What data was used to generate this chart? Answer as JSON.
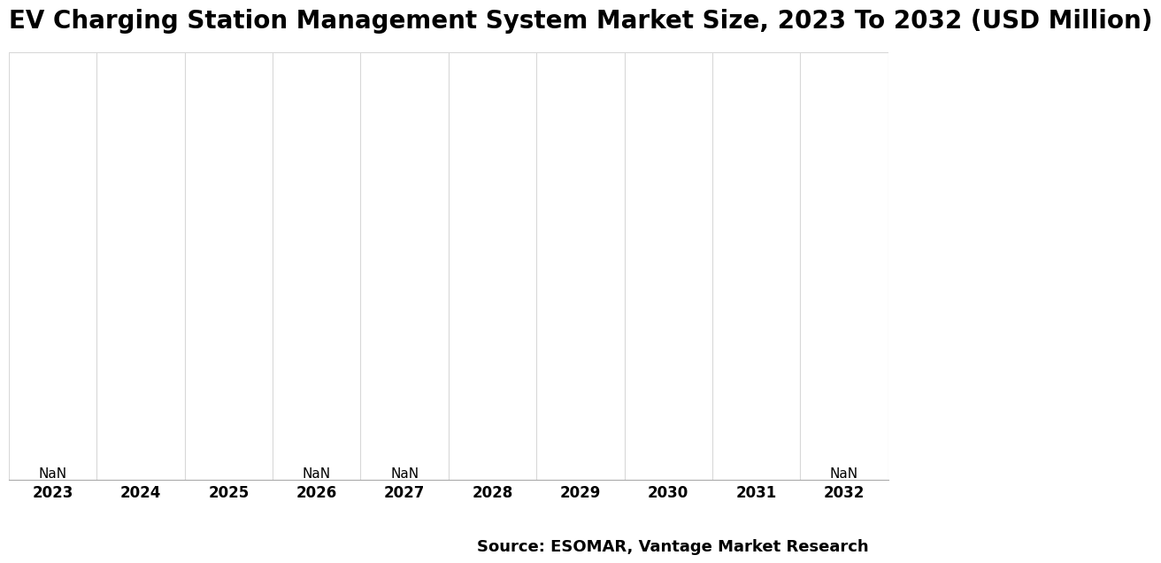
{
  "title": "EV Charging Station Management System Market Size, 2023 To 2032 (USD Million)",
  "years": [
    2023,
    2024,
    2025,
    2026,
    2027,
    2028,
    2029,
    2030,
    2031,
    2032
  ],
  "values": [
    0,
    0,
    0,
    0,
    0,
    0,
    0,
    0,
    0,
    0
  ],
  "nan_label_indices": [
    0,
    3,
    4,
    9
  ],
  "bar_color": "#4472c4",
  "background_color": "#ffffff",
  "plot_bg_color": "#ffffff",
  "grid_color": "#d8d8d8",
  "source_text": "Source: ESOMAR, Vantage Market Research",
  "title_fontsize": 20,
  "tick_fontsize": 12,
  "source_fontsize": 13,
  "nan_fontsize": 11,
  "ylim": [
    0,
    1
  ]
}
